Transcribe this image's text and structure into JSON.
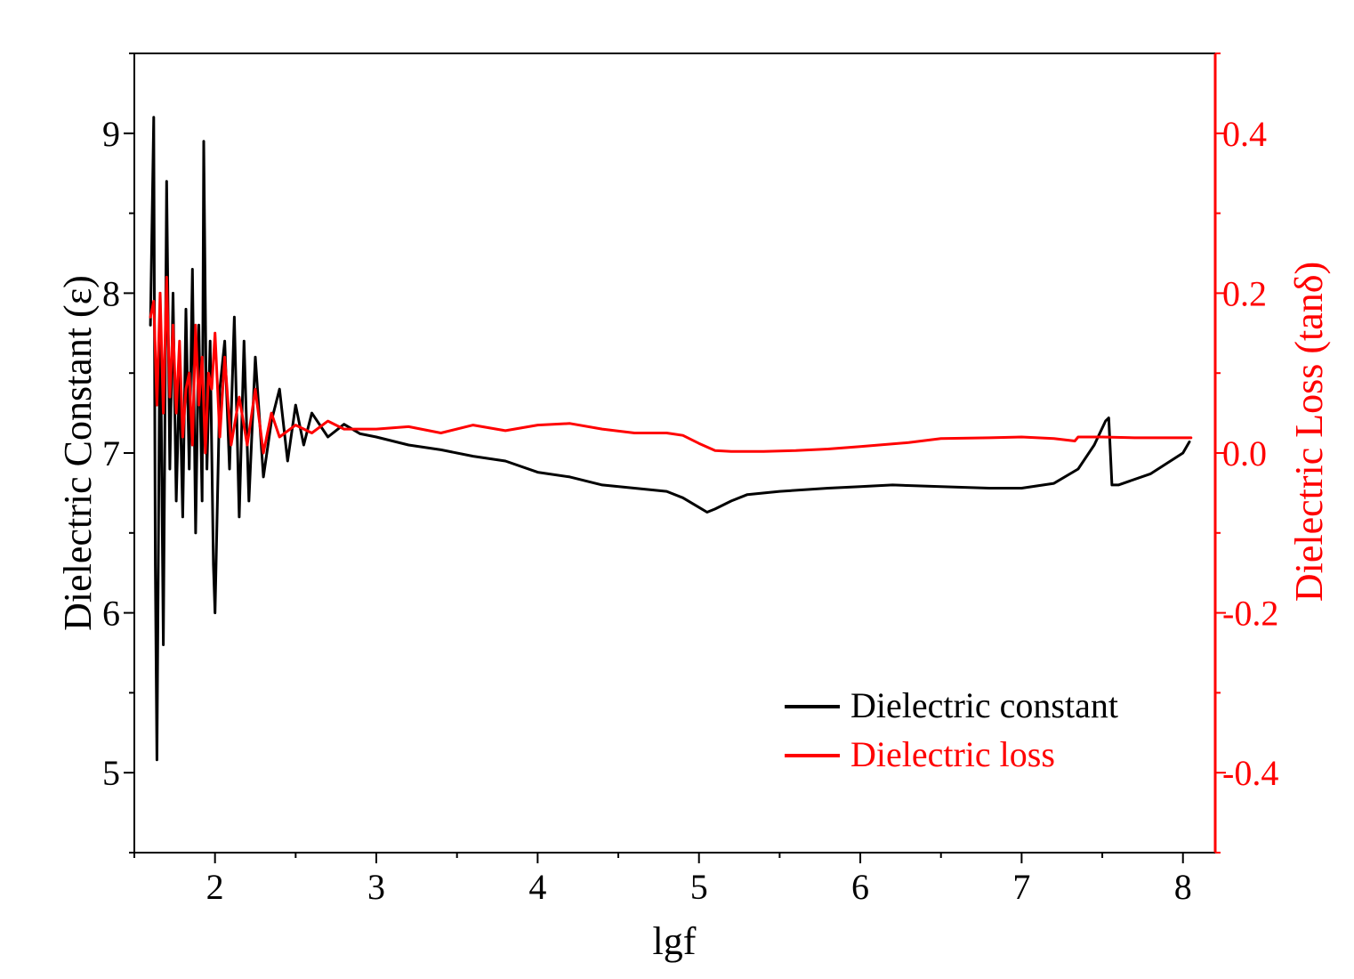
{
  "colors": {
    "left_axis": "#000000",
    "right_axis": "#ff0000",
    "background": "#ffffff"
  },
  "chart_data": {
    "type": "line",
    "title": "",
    "xlabel": "lgf",
    "ylabel_left": "Dielectric Constant (ε)",
    "ylabel_right": "Dielectric Loss (tanδ)",
    "xlim": [
      1.5,
      8.2
    ],
    "ylim_left": [
      4.5,
      9.5
    ],
    "ylim_right": [
      -0.5,
      0.5
    ],
    "x_ticks": [
      2,
      3,
      4,
      5,
      6,
      7,
      8
    ],
    "y_left_ticks": [
      5,
      6,
      7,
      8,
      9
    ],
    "y_right_ticks": [
      0.4,
      0.2,
      0.0,
      -0.2,
      -0.4
    ],
    "y_right_tick_labels": [
      "0.4",
      "0.2",
      "0.0",
      "-0.2",
      "-0.4"
    ],
    "grid": false,
    "legend_position": "bottom-right",
    "series": [
      {
        "name": "Dielectric constant",
        "axis": "left",
        "color": "#000000",
        "x": [
          1.6,
          1.62,
          1.63,
          1.64,
          1.66,
          1.68,
          1.7,
          1.72,
          1.74,
          1.76,
          1.78,
          1.8,
          1.82,
          1.84,
          1.86,
          1.88,
          1.9,
          1.92,
          1.93,
          1.95,
          1.97,
          1.99,
          2.0,
          2.03,
          2.06,
          2.09,
          2.12,
          2.15,
          2.18,
          2.21,
          2.25,
          2.3,
          2.35,
          2.4,
          2.45,
          2.5,
          2.55,
          2.6,
          2.7,
          2.8,
          2.9,
          3.0,
          3.2,
          3.4,
          3.6,
          3.8,
          4.0,
          4.2,
          4.4,
          4.6,
          4.8,
          4.9,
          5.0,
          5.05,
          5.1,
          5.2,
          5.3,
          5.5,
          5.8,
          6.0,
          6.2,
          6.5,
          6.8,
          7.0,
          7.2,
          7.35,
          7.45,
          7.52,
          7.54,
          7.56,
          7.6,
          7.8,
          8.0,
          8.04
        ],
        "y": [
          7.8,
          9.1,
          6.3,
          5.08,
          8.0,
          5.8,
          8.7,
          6.9,
          8.0,
          6.7,
          7.5,
          6.6,
          7.9,
          6.9,
          8.15,
          6.5,
          7.8,
          6.7,
          8.95,
          6.9,
          7.7,
          6.3,
          6.0,
          7.4,
          7.7,
          6.9,
          7.85,
          6.6,
          7.7,
          6.7,
          7.6,
          6.85,
          7.2,
          7.4,
          6.95,
          7.3,
          7.05,
          7.25,
          7.1,
          7.18,
          7.12,
          7.1,
          7.05,
          7.02,
          6.98,
          6.95,
          6.88,
          6.85,
          6.8,
          6.78,
          6.76,
          6.72,
          6.66,
          6.63,
          6.65,
          6.7,
          6.74,
          6.76,
          6.78,
          6.79,
          6.8,
          6.79,
          6.78,
          6.78,
          6.81,
          6.9,
          7.05,
          7.2,
          7.22,
          6.8,
          6.8,
          6.87,
          7.0,
          7.07
        ]
      },
      {
        "name": "Dielectric loss",
        "axis": "right",
        "color": "#ff0000",
        "x": [
          1.6,
          1.62,
          1.64,
          1.66,
          1.68,
          1.7,
          1.72,
          1.74,
          1.76,
          1.78,
          1.8,
          1.82,
          1.84,
          1.86,
          1.88,
          1.9,
          1.92,
          1.94,
          1.96,
          1.98,
          2.0,
          2.03,
          2.06,
          2.1,
          2.15,
          2.2,
          2.25,
          2.3,
          2.35,
          2.4,
          2.5,
          2.6,
          2.7,
          2.8,
          3.0,
          3.2,
          3.4,
          3.6,
          3.8,
          4.0,
          4.2,
          4.4,
          4.6,
          4.8,
          4.9,
          5.0,
          5.1,
          5.2,
          5.4,
          5.6,
          5.8,
          6.0,
          6.3,
          6.5,
          6.8,
          7.0,
          7.2,
          7.33,
          7.35,
          7.5,
          7.7,
          8.0,
          8.05
        ],
        "y": [
          0.17,
          0.19,
          0.06,
          0.2,
          0.05,
          0.22,
          0.07,
          0.16,
          0.05,
          0.14,
          0.02,
          0.08,
          0.1,
          0.01,
          0.16,
          0.06,
          0.12,
          0.0,
          0.1,
          0.08,
          0.15,
          0.02,
          0.12,
          0.01,
          0.07,
          0.01,
          0.08,
          0.0,
          0.05,
          0.02,
          0.035,
          0.025,
          0.04,
          0.03,
          0.03,
          0.033,
          0.025,
          0.035,
          0.028,
          0.035,
          0.037,
          0.03,
          0.025,
          0.025,
          0.022,
          0.012,
          0.003,
          0.002,
          0.002,
          0.003,
          0.005,
          0.008,
          0.013,
          0.018,
          0.019,
          0.02,
          0.018,
          0.015,
          0.02,
          0.02,
          0.019,
          0.019,
          0.019
        ]
      }
    ]
  }
}
